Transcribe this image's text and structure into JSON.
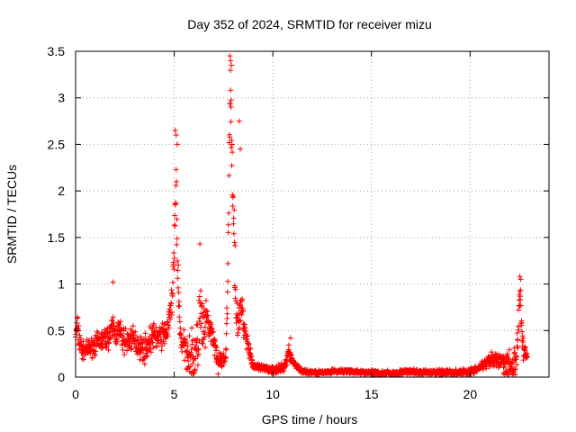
{
  "chart_data": {
    "type": "scatter",
    "title": "Day 352 of 2024, SRMTID for receiver mizu",
    "xlabel": "GPS time / hours",
    "ylabel": "SRMTID / TECUs",
    "xlim": [
      0,
      24
    ],
    "ylim": [
      0,
      3.5
    ],
    "grid": true,
    "marker": "+",
    "color": "#ff0000",
    "x_ticks": [
      {
        "value": 0,
        "label": "0"
      },
      {
        "value": 5,
        "label": "5"
      },
      {
        "value": 10,
        "label": "10"
      },
      {
        "value": 15,
        "label": "15"
      },
      {
        "value": 20,
        "label": "20"
      }
    ],
    "y_ticks": [
      {
        "value": 0,
        "label": "0"
      },
      {
        "value": 0.5,
        "label": "0.5"
      },
      {
        "value": 1,
        "label": "1"
      },
      {
        "value": 1.5,
        "label": "1.5"
      },
      {
        "value": 2,
        "label": "2"
      },
      {
        "value": 2.5,
        "label": "2.5"
      },
      {
        "value": 3,
        "label": "3"
      },
      {
        "value": 3.5,
        "label": "3.5"
      }
    ],
    "envelope": [
      [
        0.0,
        0.45
      ],
      [
        0.1,
        0.55
      ],
      [
        0.2,
        0.38
      ],
      [
        0.3,
        0.3
      ],
      [
        0.4,
        0.28
      ],
      [
        0.6,
        0.3
      ],
      [
        0.8,
        0.32
      ],
      [
        1.0,
        0.35
      ],
      [
        1.2,
        0.38
      ],
      [
        1.4,
        0.4
      ],
      [
        1.6,
        0.42
      ],
      [
        1.8,
        0.48
      ],
      [
        1.9,
        0.55
      ],
      [
        2.0,
        0.45
      ],
      [
        2.2,
        0.5
      ],
      [
        2.4,
        0.4
      ],
      [
        2.6,
        0.38
      ],
      [
        2.8,
        0.42
      ],
      [
        3.0,
        0.38
      ],
      [
        3.2,
        0.35
      ],
      [
        3.4,
        0.3
      ],
      [
        3.6,
        0.32
      ],
      [
        3.8,
        0.4
      ],
      [
        4.0,
        0.45
      ],
      [
        4.2,
        0.42
      ],
      [
        4.4,
        0.45
      ],
      [
        4.6,
        0.48
      ],
      [
        4.8,
        0.65
      ],
      [
        4.9,
        0.9
      ],
      [
        5.0,
        1.3
      ],
      [
        5.05,
        1.7
      ],
      [
        5.1,
        2.0
      ],
      [
        5.15,
        1.5
      ],
      [
        5.2,
        1.0
      ],
      [
        5.3,
        0.5
      ],
      [
        5.4,
        0.35
      ],
      [
        5.6,
        0.3
      ],
      [
        5.8,
        0.25
      ],
      [
        6.0,
        0.22
      ],
      [
        6.2,
        0.3
      ],
      [
        6.3,
        0.75
      ],
      [
        6.4,
        0.55
      ],
      [
        6.5,
        0.45
      ],
      [
        6.6,
        0.55
      ],
      [
        6.7,
        0.6
      ],
      [
        6.8,
        0.5
      ],
      [
        7.0,
        0.4
      ],
      [
        7.2,
        0.18
      ],
      [
        7.4,
        0.15
      ],
      [
        7.6,
        0.2
      ],
      [
        7.7,
        0.8
      ],
      [
        7.8,
        2.5
      ],
      [
        7.85,
        3.1
      ],
      [
        7.9,
        2.8
      ],
      [
        8.0,
        1.8
      ],
      [
        8.1,
        1.0
      ],
      [
        8.2,
        0.6
      ],
      [
        8.3,
        0.55
      ],
      [
        8.4,
        0.8
      ],
      [
        8.5,
        0.6
      ],
      [
        8.6,
        0.5
      ],
      [
        8.7,
        0.4
      ],
      [
        8.8,
        0.3
      ],
      [
        9.0,
        0.12
      ],
      [
        9.5,
        0.09
      ],
      [
        10.0,
        0.08
      ],
      [
        10.4,
        0.09
      ],
      [
        10.6,
        0.1
      ],
      [
        10.8,
        0.28
      ],
      [
        10.9,
        0.22
      ],
      [
        11.0,
        0.17
      ],
      [
        11.2,
        0.12
      ],
      [
        11.5,
        0.06
      ],
      [
        12.0,
        0.05
      ],
      [
        12.5,
        0.05
      ],
      [
        13.0,
        0.06
      ],
      [
        13.5,
        0.06
      ],
      [
        14.0,
        0.06
      ],
      [
        14.5,
        0.05
      ],
      [
        15.0,
        0.05
      ],
      [
        15.5,
        0.04
      ],
      [
        16.0,
        0.04
      ],
      [
        16.5,
        0.05
      ],
      [
        17.0,
        0.06
      ],
      [
        17.5,
        0.05
      ],
      [
        18.0,
        0.05
      ],
      [
        18.5,
        0.05
      ],
      [
        19.0,
        0.05
      ],
      [
        19.5,
        0.05
      ],
      [
        20.0,
        0.06
      ],
      [
        20.3,
        0.08
      ],
      [
        20.6,
        0.12
      ],
      [
        21.0,
        0.17
      ],
      [
        21.3,
        0.18
      ],
      [
        21.6,
        0.16
      ],
      [
        22.0,
        0.13
      ],
      [
        22.2,
        0.12
      ],
      [
        22.4,
        0.3
      ],
      [
        22.5,
        0.8
      ],
      [
        22.55,
        0.95
      ],
      [
        22.6,
        0.6
      ],
      [
        22.7,
        0.3
      ],
      [
        22.9,
        0.2
      ]
    ],
    "scatter_amp": [
      [
        0.0,
        0.1
      ],
      [
        0.2,
        0.25
      ],
      [
        0.4,
        0.12
      ],
      [
        2.0,
        0.2
      ],
      [
        4.8,
        0.2
      ],
      [
        5.0,
        0.5
      ],
      [
        5.1,
        0.7
      ],
      [
        5.2,
        0.4
      ],
      [
        5.4,
        0.2
      ],
      [
        6.4,
        0.5
      ],
      [
        6.7,
        0.35
      ],
      [
        7.0,
        0.2
      ],
      [
        7.6,
        0.12
      ],
      [
        7.9,
        0.5
      ],
      [
        8.1,
        0.5
      ],
      [
        8.4,
        0.25
      ],
      [
        8.8,
        0.15
      ],
      [
        9.0,
        0.05
      ],
      [
        10.8,
        0.08
      ],
      [
        11.5,
        0.03
      ],
      [
        20.5,
        0.05
      ],
      [
        22.5,
        0.3
      ],
      [
        22.6,
        0.2
      ],
      [
        22.9,
        0.1
      ]
    ],
    "highlights": [
      [
        1.9,
        1.02
      ],
      [
        5.05,
        2.65
      ],
      [
        5.1,
        2.6
      ],
      [
        5.15,
        2.5
      ],
      [
        6.3,
        1.43
      ],
      [
        7.82,
        3.45
      ],
      [
        7.86,
        3.4
      ],
      [
        7.9,
        3.35
      ],
      [
        7.88,
        2.9
      ],
      [
        8.3,
        2.75
      ],
      [
        8.35,
        2.45
      ],
      [
        10.9,
        0.42
      ],
      [
        22.52,
        1.08
      ],
      [
        22.57,
        1.05
      ]
    ]
  }
}
